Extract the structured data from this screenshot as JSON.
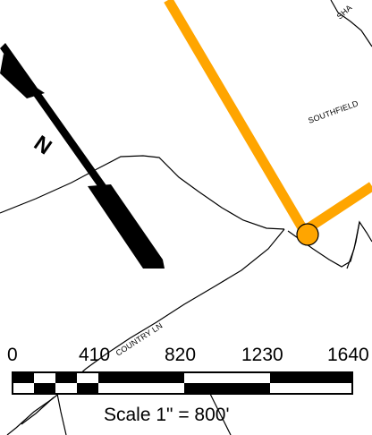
{
  "map": {
    "streets": [
      "SHA",
      "SOUTHFIELD",
      "COUNTRY LN"
    ],
    "route_color": "#FFA500",
    "road_color": "#000000",
    "north_arrow": {
      "label": "N",
      "icon": "north-arrow-icon"
    }
  },
  "scale_bar": {
    "ticks": [
      "0",
      "410",
      "820",
      "1230",
      "1640"
    ],
    "caption": "Scale 1\" = 800'"
  }
}
